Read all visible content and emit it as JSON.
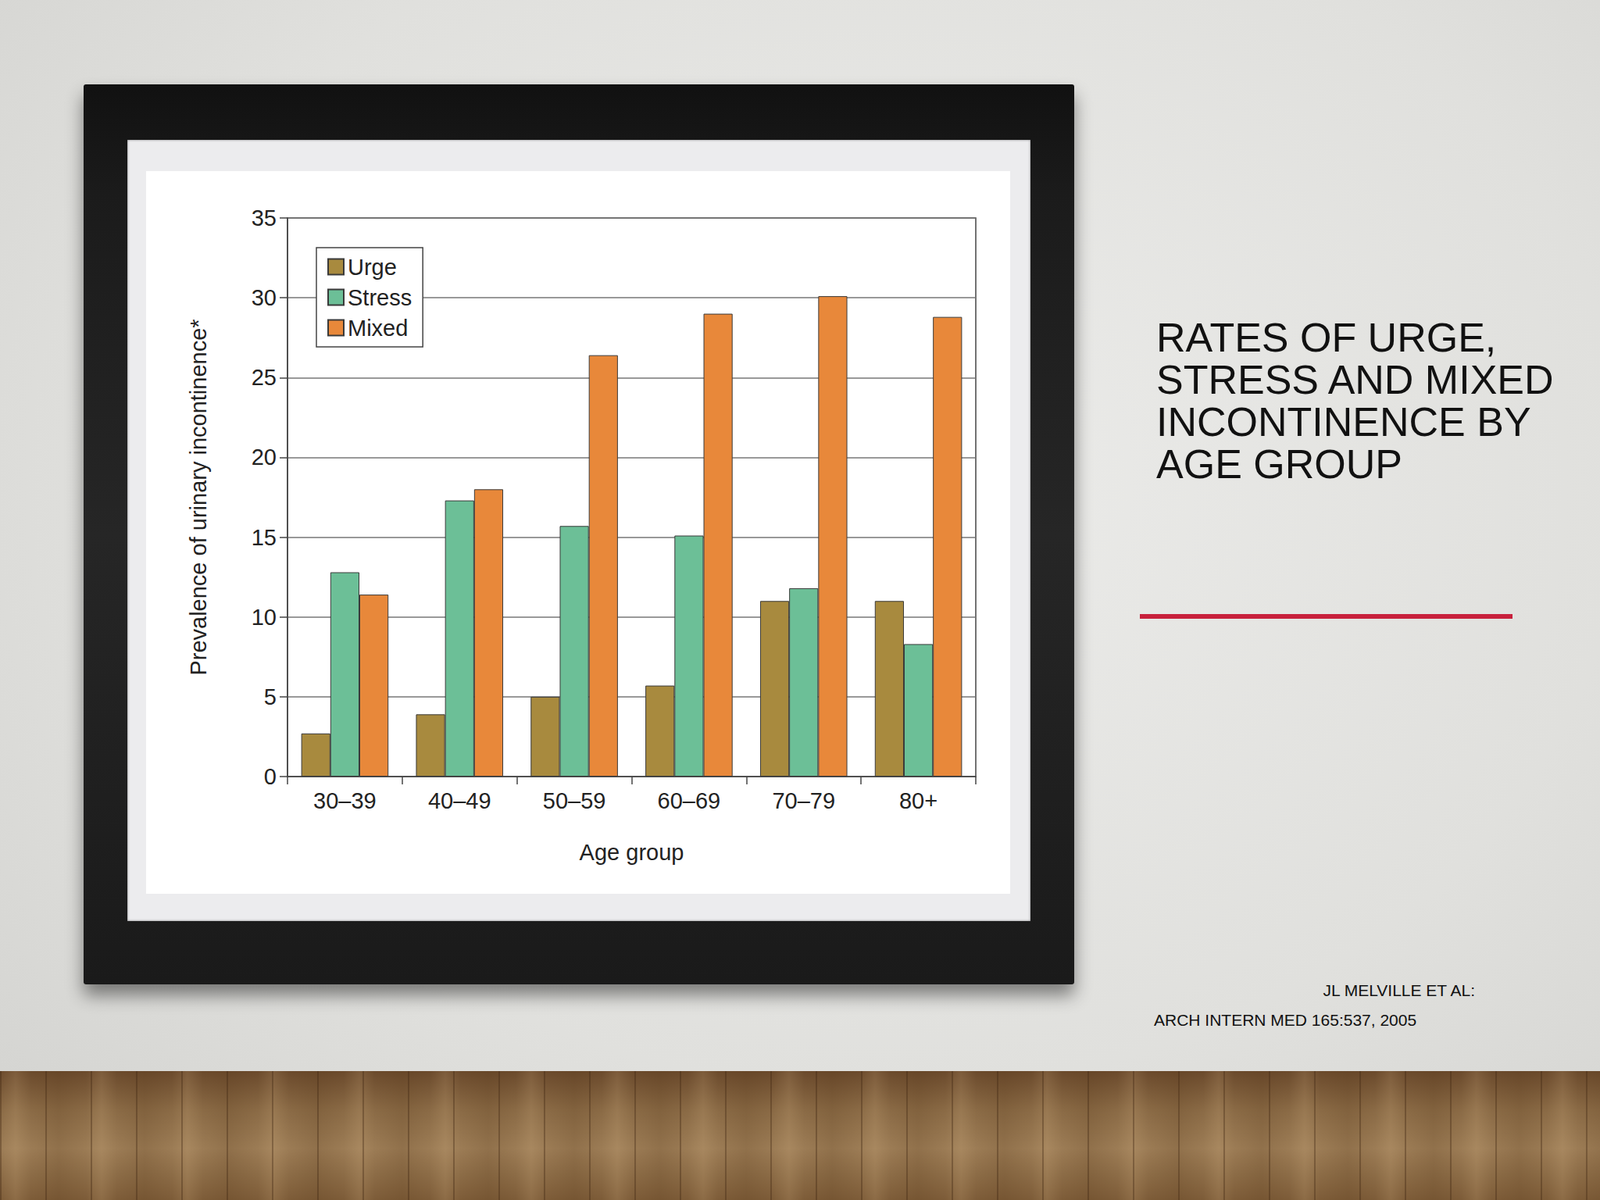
{
  "chart_data": {
    "type": "bar",
    "title": "RATES OF URGE, STRESS AND MIXED INCONTINENCE BY AGE GROUP",
    "x_label": "Age group",
    "y_label": "Prevalence of urinary incontinence*",
    "categories": [
      "30–39",
      "40–49",
      "50–59",
      "60–69",
      "70–79",
      "80+"
    ],
    "series": [
      {
        "name": "Urge",
        "color": "#a88a3e",
        "values": [
          2.7,
          3.9,
          5.0,
          5.7,
          11.0,
          11.0
        ]
      },
      {
        "name": "Stress",
        "color": "#6cbf97",
        "values": [
          12.8,
          17.3,
          15.7,
          15.1,
          11.8,
          8.3
        ]
      },
      {
        "name": "Mixed",
        "color": "#e8883a",
        "values": [
          11.4,
          18.0,
          26.4,
          29.0,
          30.1,
          28.8
        ]
      }
    ],
    "ylim": [
      0,
      35
    ],
    "yticks": [
      0,
      5,
      10,
      15,
      20,
      25,
      30,
      35
    ],
    "grid": true,
    "legend": "top-left",
    "source": [
      "JL MELVILLE ET AL:",
      "ARCH INTERN MED 165:537, 2005"
    ]
  }
}
